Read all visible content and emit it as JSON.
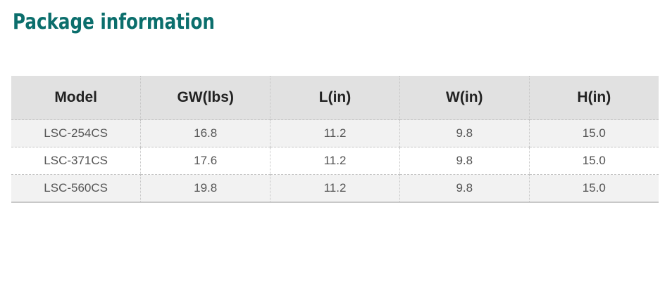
{
  "title": "Package information",
  "table": {
    "columns": [
      "Model",
      "GW(lbs)",
      "L(in)",
      "W(in)",
      "H(in)"
    ],
    "rows": [
      [
        "LSC-254CS",
        "16.8",
        "11.2",
        "9.8",
        "15.0"
      ],
      [
        "LSC-371CS",
        "17.6",
        "11.2",
        "9.8",
        "15.0"
      ],
      [
        "LSC-560CS",
        "19.8",
        "11.2",
        "9.8",
        "15.0"
      ]
    ]
  }
}
